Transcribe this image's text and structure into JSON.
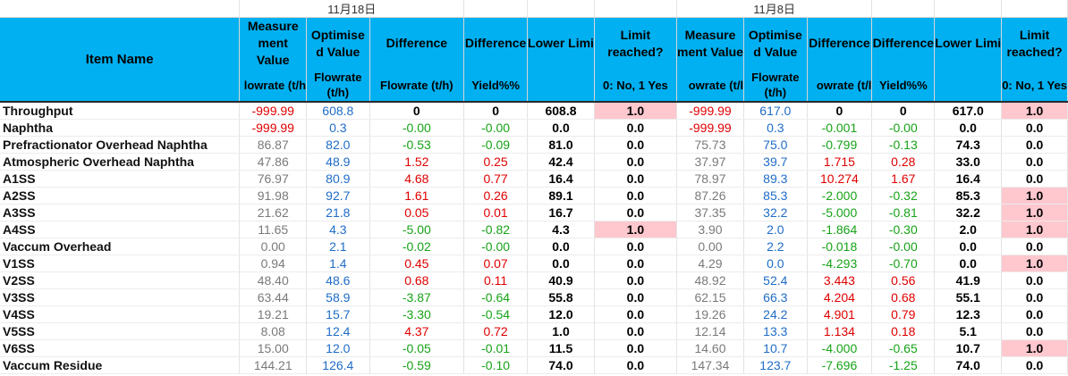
{
  "dates": {
    "left": "11月18日",
    "right": "11月8日"
  },
  "header": {
    "item_name": "Item Name",
    "left": {
      "measure": "Measure ment Value",
      "measure_unit": "lowrate (t/h",
      "optimised": "Optimise d Value",
      "optimised_unit": "Flowrate (t/h)",
      "difference": "Difference",
      "difference_unit": "Flowrate (t/h)",
      "difference2": "Difference",
      "difference2_unit": "Yield%%",
      "lower": "Lower Limi",
      "lower_unit": "",
      "limit": "Limit reached?",
      "limit_unit": "0: No, 1 Yes"
    },
    "right": {
      "measure": "Measure ment Value",
      "measure_unit": "owrate (t/l",
      "optimised": "Optimise d Value",
      "optimised_unit": "Flowrate (t/h)",
      "difference": "Difference",
      "difference_unit": "owrate (t/l",
      "difference2": "Difference",
      "difference2_unit": "Yield%%",
      "lower": "Lower Limi",
      "lower_unit": "",
      "limit": "Limit reached?",
      "limit_unit": "0: No, 1 Yes"
    }
  },
  "highlight_color": "#ffc7ce",
  "header_color": "#00b0f0",
  "rows": [
    {
      "name": "Throughput",
      "l": [
        "-999.99",
        "608.8",
        "0",
        "0",
        "608.8",
        "1.0"
      ],
      "r": [
        "-999.99",
        "617.0",
        "0",
        "0",
        "617.0",
        "1.0"
      ],
      "lhl": true,
      "rhl": true,
      "style": "thru"
    },
    {
      "name": "Naphtha",
      "l": [
        "-999.99",
        "0.3",
        "-0.00",
        "-0.00",
        "0.0",
        "0.0"
      ],
      "r": [
        "-999.99",
        "0.3",
        "-0.001",
        "-0.00",
        "0.0",
        "0.0"
      ],
      "lhl": false,
      "rhl": false,
      "style": "naph"
    },
    {
      "name": "Prefractionator Overhead Naphtha",
      "l": [
        "86.87",
        "82.0",
        "-0.53",
        "-0.09",
        "81.0",
        "0.0"
      ],
      "r": [
        "75.73",
        "75.0",
        "-0.799",
        "-0.13",
        "74.3",
        "0.0"
      ],
      "lhl": false,
      "rhl": false
    },
    {
      "name": "Atmospheric Overhead Naphtha",
      "l": [
        "47.86",
        "48.9",
        "1.52",
        "0.25",
        "42.4",
        "0.0"
      ],
      "r": [
        "37.97",
        "39.7",
        "1.715",
        "0.28",
        "33.0",
        "0.0"
      ],
      "lhl": false,
      "rhl": false
    },
    {
      "name": "A1SS",
      "l": [
        "76.97",
        "80.9",
        "4.68",
        "0.77",
        "16.4",
        "0.0"
      ],
      "r": [
        "78.97",
        "89.3",
        "10.274",
        "1.67",
        "16.4",
        "0.0"
      ],
      "lhl": false,
      "rhl": false
    },
    {
      "name": "A2SS",
      "l": [
        "91.98",
        "92.7",
        "1.61",
        "0.26",
        "89.1",
        "0.0"
      ],
      "r": [
        "87.26",
        "85.3",
        "-2.000",
        "-0.32",
        "85.3",
        "1.0"
      ],
      "lhl": false,
      "rhl": true
    },
    {
      "name": "A3SS",
      "l": [
        "21.62",
        "21.8",
        "0.05",
        "0.01",
        "16.7",
        "0.0"
      ],
      "r": [
        "37.35",
        "32.2",
        "-5.000",
        "-0.81",
        "32.2",
        "1.0"
      ],
      "lhl": false,
      "rhl": true
    },
    {
      "name": "A4SS",
      "l": [
        "11.65",
        "4.3",
        "-5.00",
        "-0.82",
        "4.3",
        "1.0"
      ],
      "r": [
        "3.90",
        "2.0",
        "-1.864",
        "-0.30",
        "2.0",
        "1.0"
      ],
      "lhl": true,
      "rhl": true
    },
    {
      "name": "Vaccum Overhead",
      "l": [
        "0.00",
        "2.1",
        "-0.02",
        "-0.00",
        "0.0",
        "0.0"
      ],
      "r": [
        "0.00",
        "2.2",
        "-0.018",
        "-0.00",
        "0.0",
        "0.0"
      ],
      "lhl": false,
      "rhl": false
    },
    {
      "name": "V1SS",
      "l": [
        "0.94",
        "1.4",
        "0.45",
        "0.07",
        "0.0",
        "0.0"
      ],
      "r": [
        "4.29",
        "0.0",
        "-4.293",
        "-0.70",
        "0.0",
        "1.0"
      ],
      "lhl": false,
      "rhl": true
    },
    {
      "name": "V2SS",
      "l": [
        "48.40",
        "48.6",
        "0.68",
        "0.11",
        "40.9",
        "0.0"
      ],
      "r": [
        "48.92",
        "52.4",
        "3.443",
        "0.56",
        "41.9",
        "0.0"
      ],
      "lhl": false,
      "rhl": false
    },
    {
      "name": "V3SS",
      "l": [
        "63.44",
        "58.9",
        "-3.87",
        "-0.64",
        "55.8",
        "0.0"
      ],
      "r": [
        "62.15",
        "66.3",
        "4.204",
        "0.68",
        "55.1",
        "0.0"
      ],
      "lhl": false,
      "rhl": false
    },
    {
      "name": "V4SS",
      "l": [
        "19.21",
        "15.7",
        "-3.30",
        "-0.54",
        "12.0",
        "0.0"
      ],
      "r": [
        "19.26",
        "24.2",
        "4.901",
        "0.79",
        "12.3",
        "0.0"
      ],
      "lhl": false,
      "rhl": false
    },
    {
      "name": "V5SS",
      "l": [
        "8.08",
        "12.4",
        "4.37",
        "0.72",
        "1.0",
        "0.0"
      ],
      "r": [
        "12.14",
        "13.3",
        "1.134",
        "0.18",
        "5.1",
        "0.0"
      ],
      "lhl": false,
      "rhl": false
    },
    {
      "name": "V6SS",
      "l": [
        "15.00",
        "12.0",
        "-0.05",
        "-0.01",
        "11.5",
        "0.0"
      ],
      "r": [
        "14.60",
        "10.7",
        "-4.000",
        "-0.65",
        "10.7",
        "1.0"
      ],
      "lhl": false,
      "rhl": true
    },
    {
      "name": "Vaccum Residue",
      "l": [
        "144.21",
        "126.4",
        "-0.59",
        "-0.10",
        "74.0",
        "0.0"
      ],
      "r": [
        "147.34",
        "123.7",
        "-7.696",
        "-1.25",
        "74.0",
        "0.0"
      ],
      "lhl": false,
      "rhl": false
    }
  ]
}
